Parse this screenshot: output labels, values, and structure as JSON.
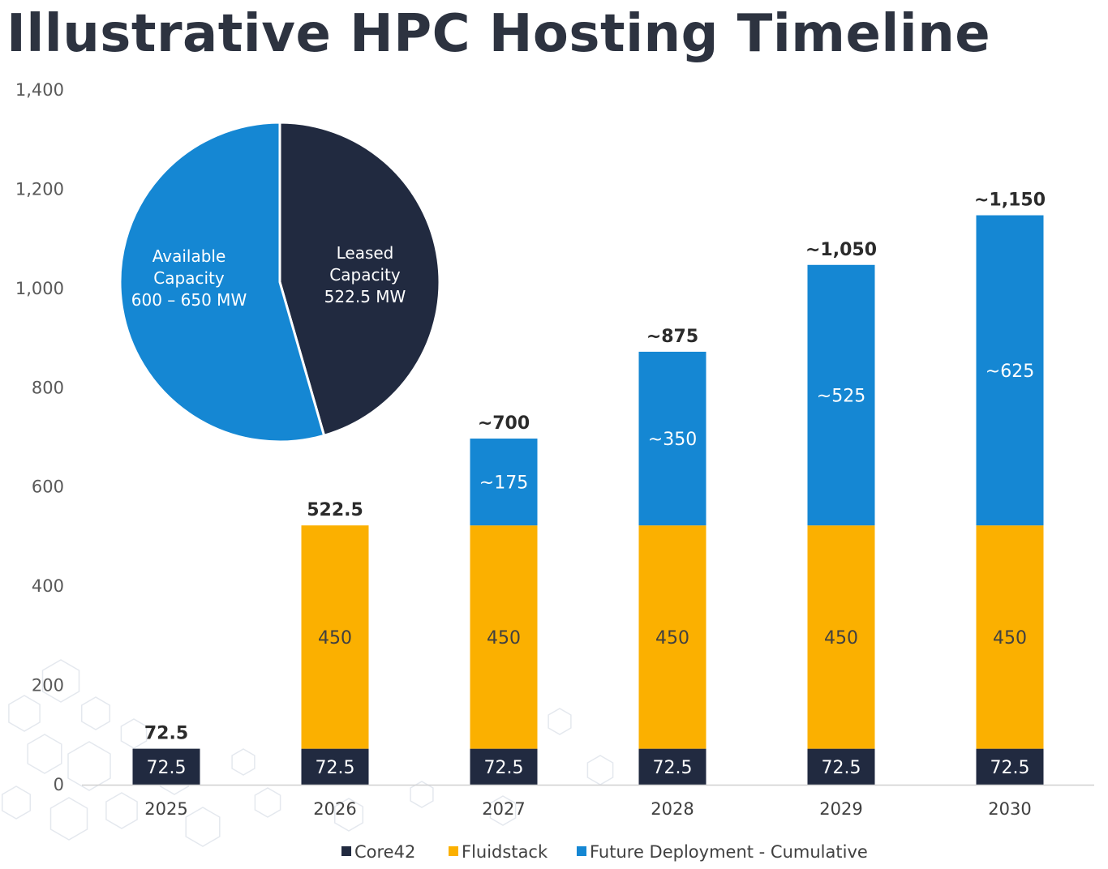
{
  "title": "Illustrative HPC Hosting Timeline",
  "colors": {
    "core42": "#212a40",
    "fluidstack": "#fbb000",
    "future": "#1587d3",
    "axis": "#d0d0d0"
  },
  "chart_data": [
    {
      "type": "bar",
      "stacked": true,
      "title": "",
      "xlabel": "",
      "ylabel": "",
      "ylim": [
        0,
        1400
      ],
      "yticks": [
        "0",
        "200",
        "400",
        "600",
        "800",
        "1,000",
        "1,200",
        "1,400"
      ],
      "grid": false,
      "legend_position": "bottom",
      "categories": [
        "2025",
        "2026",
        "2027",
        "2028",
        "2029",
        "2030"
      ],
      "series": [
        {
          "name": "Core42",
          "color": "#212a40",
          "values": [
            72.5,
            72.5,
            72.5,
            72.5,
            72.5,
            72.5
          ],
          "labels": [
            "72.5",
            "72.5",
            "72.5",
            "72.5",
            "72.5",
            "72.5"
          ]
        },
        {
          "name": "Fluidstack",
          "color": "#fbb000",
          "values": [
            0,
            450,
            450,
            450,
            450,
            450
          ],
          "labels": [
            "",
            "450",
            "450",
            "450",
            "450",
            "450"
          ]
        },
        {
          "name": "Future Deployment - Cumulative",
          "color": "#1587d3",
          "values": [
            0,
            0,
            175,
            350,
            525,
            625
          ],
          "labels": [
            "",
            "",
            "~175",
            "~350",
            "~525",
            "~625"
          ]
        }
      ],
      "totals": [
        "72.5",
        "522.5",
        "~700",
        "~875",
        "~1,050",
        "~1,150"
      ]
    },
    {
      "type": "pie",
      "slices": [
        {
          "label_lines": [
            "Leased",
            "Capacity",
            "522.5 MW"
          ],
          "value": 522.5,
          "color": "#212a40"
        },
        {
          "label_lines": [
            "Available",
            "Capacity",
            "600 – 650  MW"
          ],
          "value": 625,
          "color": "#1587d3"
        }
      ]
    }
  ]
}
